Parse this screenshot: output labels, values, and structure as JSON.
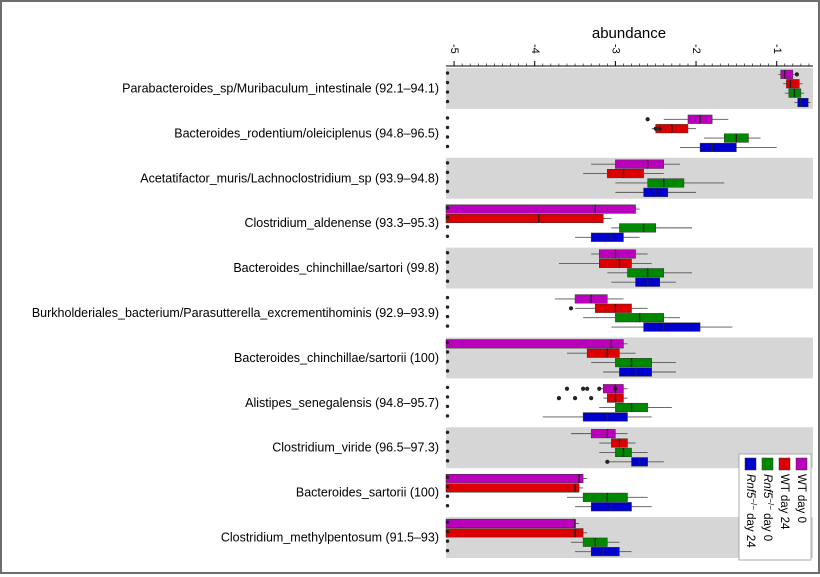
{
  "chart_data": {
    "type": "boxplot",
    "orientation": "horizontal",
    "title": "abundance",
    "xlabel": "abundance",
    "x_range": [
      -5.1,
      -0.55
    ],
    "x_ticks": [
      {
        "value": -5,
        "label": "-5"
      },
      {
        "value": -4,
        "label": "-4"
      },
      {
        "value": -3,
        "label": "-3"
      },
      {
        "value": -2,
        "label": "-2"
      },
      {
        "value": -1,
        "label": "-1"
      }
    ],
    "group_order": [
      "WT day 0",
      "WT day 24",
      "Rnf5 -/- day 0",
      "Rnf5 -/- day 24"
    ],
    "legend": [
      {
        "name": "WT day 0",
        "color": "#bb00bb"
      },
      {
        "name": "WT day 24",
        "color": "#dd0000"
      },
      {
        "name": "Rnf5 -/- day 0",
        "color": "#008800"
      },
      {
        "name": "Rnf5 -/- day 24",
        "color": "#0000cc"
      }
    ],
    "legend_display": [
      {
        "id": "wt-day0",
        "color": "#bb00bb",
        "text": "WT day 0"
      },
      {
        "id": "wt-day24",
        "color": "#dd0000",
        "text": "WT day 24"
      },
      {
        "id": "rnf5-day0",
        "color": "#008800",
        "text": "Rnf5",
        "sup": "−/−",
        "tail": " day 0"
      },
      {
        "id": "rnf5-day24",
        "color": "#0000cc",
        "text": "Rnf5",
        "sup": "−/−",
        "tail": " day 24"
      }
    ],
    "categories": [
      {
        "label": "Parabacteroides_sp/Muribaculum_intestinale (92.1–94.1)",
        "boxes": [
          {
            "q1": -0.95,
            "median": -0.9,
            "q3": -0.8,
            "wmin": -0.98,
            "wmax": -0.78,
            "outliers": [
              -0.75
            ]
          },
          {
            "q1": -0.88,
            "median": -0.83,
            "q3": -0.72,
            "wmin": -0.92,
            "wmax": -0.68,
            "outliers": []
          },
          {
            "q1": -0.85,
            "median": -0.78,
            "q3": -0.7,
            "wmin": -0.9,
            "wmax": -0.66,
            "outliers": []
          },
          {
            "q1": -0.74,
            "median": -0.7,
            "q3": -0.61,
            "wmin": -0.78,
            "wmax": -0.58,
            "outliers": []
          }
        ]
      },
      {
        "label": "Bacteroides_rodentium/oleiciplenus (94.8–96.5)",
        "boxes": [
          {
            "q1": -2.1,
            "median": -1.95,
            "q3": -1.8,
            "wmin": -2.4,
            "wmax": -1.6,
            "outliers": [
              -2.6
            ]
          },
          {
            "q1": -2.5,
            "median": -2.3,
            "q3": -2.1,
            "wmin": -2.55,
            "wmax": -2.0,
            "outliers": [
              -2.5,
              -2.45
            ]
          },
          {
            "q1": -1.65,
            "median": -1.5,
            "q3": -1.35,
            "wmin": -1.9,
            "wmax": -1.2,
            "outliers": []
          },
          {
            "q1": -1.95,
            "median": -1.8,
            "q3": -1.5,
            "wmin": -2.2,
            "wmax": -1.0,
            "outliers": []
          }
        ]
      },
      {
        "label": "Acetatifactor_muris/Lachnoclostridium_sp (93.9–94.8)",
        "boxes": [
          {
            "q1": -3.0,
            "median": -2.6,
            "q3": -2.4,
            "wmin": -3.3,
            "wmax": -2.2,
            "outliers": []
          },
          {
            "q1": -3.1,
            "median": -2.9,
            "q3": -2.65,
            "wmin": -3.4,
            "wmax": -2.4,
            "outliers": []
          },
          {
            "q1": -2.6,
            "median": -2.4,
            "q3": -2.15,
            "wmin": -3.0,
            "wmax": -1.65,
            "outliers": []
          },
          {
            "q1": -2.65,
            "median": -2.5,
            "q3": -2.35,
            "wmin": -3.0,
            "wmax": -2.0,
            "outliers": []
          }
        ]
      },
      {
        "label": "Clostridium_aldenense (93.3–95.3)",
        "boxes": [
          {
            "q1": -5.1,
            "median": -3.25,
            "q3": -2.75,
            "wmin": -5.1,
            "wmax": -2.7,
            "outliers": []
          },
          {
            "q1": -5.1,
            "median": -3.95,
            "q3": -3.15,
            "wmin": -5.1,
            "wmax": -3.05,
            "outliers": []
          },
          {
            "q1": -2.95,
            "median": -2.65,
            "q3": -2.5,
            "wmin": -3.05,
            "wmax": -2.05,
            "outliers": []
          },
          {
            "q1": -3.3,
            "median": -3.05,
            "q3": -2.9,
            "wmin": -3.5,
            "wmax": -2.7,
            "outliers": []
          }
        ]
      },
      {
        "label": "Bacteroides_chinchillae/sartori (99.8)",
        "boxes": [
          {
            "q1": -3.2,
            "median": -3.0,
            "q3": -2.75,
            "wmin": -3.3,
            "wmax": -2.6,
            "outliers": []
          },
          {
            "q1": -3.2,
            "median": -2.95,
            "q3": -2.8,
            "wmin": -3.7,
            "wmax": -2.55,
            "outliers": []
          },
          {
            "q1": -2.85,
            "median": -2.6,
            "q3": -2.4,
            "wmin": -3.1,
            "wmax": -2.05,
            "outliers": []
          },
          {
            "q1": -2.75,
            "median": -2.6,
            "q3": -2.45,
            "wmin": -3.05,
            "wmax": -2.25,
            "outliers": []
          }
        ]
      },
      {
        "label": "Burkholderiales_bacterium/Parasutterella_excrementihominis (92.9–93.9)",
        "boxes": [
          {
            "q1": -3.5,
            "median": -3.3,
            "q3": -3.1,
            "wmin": -3.75,
            "wmax": -2.9,
            "outliers": []
          },
          {
            "q1": -3.25,
            "median": -3.0,
            "q3": -2.8,
            "wmin": -3.5,
            "wmax": -2.6,
            "outliers": [
              -3.55
            ]
          },
          {
            "q1": -3.0,
            "median": -2.7,
            "q3": -2.4,
            "wmin": -3.4,
            "wmax": -2.2,
            "outliers": []
          },
          {
            "q1": -2.65,
            "median": -2.4,
            "q3": -1.95,
            "wmin": -3.05,
            "wmax": -1.55,
            "outliers": []
          }
        ]
      },
      {
        "label": "Bacteroides_chinchillae/sartorii (100)",
        "boxes": [
          {
            "q1": -5.1,
            "median": -3.05,
            "q3": -2.9,
            "wmin": -5.1,
            "wmax": -2.85,
            "outliers": []
          },
          {
            "q1": -3.35,
            "median": -3.1,
            "q3": -2.95,
            "wmin": -3.6,
            "wmax": -2.75,
            "outliers": []
          },
          {
            "q1": -3.0,
            "median": -2.8,
            "q3": -2.55,
            "wmin": -3.3,
            "wmax": -2.25,
            "outliers": []
          },
          {
            "q1": -2.95,
            "median": -2.75,
            "q3": -2.55,
            "wmin": -3.15,
            "wmax": -2.25,
            "outliers": []
          }
        ]
      },
      {
        "label": "Alistipes_senegalensis (94.8–95.7)",
        "boxes": [
          {
            "q1": -3.15,
            "median": -3.0,
            "q3": -2.9,
            "wmin": -3.2,
            "wmax": -2.85,
            "outliers": [
              -3.6,
              -3.4,
              -3.35,
              -3.2,
              -3.0
            ]
          },
          {
            "q1": -3.1,
            "median": -3.0,
            "q3": -2.9,
            "wmin": -3.15,
            "wmax": -2.85,
            "outliers": [
              -3.7,
              -3.5,
              -3.3
            ]
          },
          {
            "q1": -3.0,
            "median": -2.8,
            "q3": -2.6,
            "wmin": -3.2,
            "wmax": -2.3,
            "outliers": []
          },
          {
            "q1": -3.4,
            "median": -3.1,
            "q3": -2.85,
            "wmin": -3.9,
            "wmax": -2.55,
            "outliers": []
          }
        ]
      },
      {
        "label": "Clostridium_viride (96.5–97.3)",
        "boxes": [
          {
            "q1": -3.3,
            "median": -3.1,
            "q3": -3.0,
            "wmin": -3.55,
            "wmax": -2.85,
            "outliers": []
          },
          {
            "q1": -3.05,
            "median": -2.95,
            "q3": -2.85,
            "wmin": -3.2,
            "wmax": -2.75,
            "outliers": []
          },
          {
            "q1": -3.0,
            "median": -2.9,
            "q3": -2.8,
            "wmin": -3.2,
            "wmax": -2.6,
            "outliers": []
          },
          {
            "q1": -2.8,
            "median": -2.7,
            "q3": -2.6,
            "wmin": -3.1,
            "wmax": -2.4,
            "outliers": [
              -3.1
            ]
          }
        ]
      },
      {
        "label": "Bacteroides_sartorii (100)",
        "boxes": [
          {
            "q1": -5.1,
            "median": -3.45,
            "q3": -3.4,
            "wmin": -5.1,
            "wmax": -3.35,
            "outliers": []
          },
          {
            "q1": -5.1,
            "median": -3.5,
            "q3": -3.45,
            "wmin": -5.1,
            "wmax": -3.4,
            "outliers": []
          },
          {
            "q1": -3.4,
            "median": -3.1,
            "q3": -2.85,
            "wmin": -3.6,
            "wmax": -2.6,
            "outliers": []
          },
          {
            "q1": -3.3,
            "median": -3.05,
            "q3": -2.8,
            "wmin": -3.5,
            "wmax": -2.55,
            "outliers": []
          }
        ]
      },
      {
        "label": "Clostridium_methylpentosum (91.5–93)",
        "boxes": [
          {
            "q1": -5.1,
            "median": -3.5,
            "q3": -3.5,
            "wmin": -5.1,
            "wmax": -3.45,
            "outliers": []
          },
          {
            "q1": -5.1,
            "median": -3.5,
            "q3": -3.4,
            "wmin": -5.1,
            "wmax": -3.35,
            "outliers": []
          },
          {
            "q1": -3.4,
            "median": -3.25,
            "q3": -3.1,
            "wmin": -3.55,
            "wmax": -2.95,
            "outliers": []
          },
          {
            "q1": -3.3,
            "median": -3.15,
            "q3": -2.95,
            "wmin": -3.5,
            "wmax": -2.8,
            "outliers": []
          }
        ]
      }
    ]
  }
}
